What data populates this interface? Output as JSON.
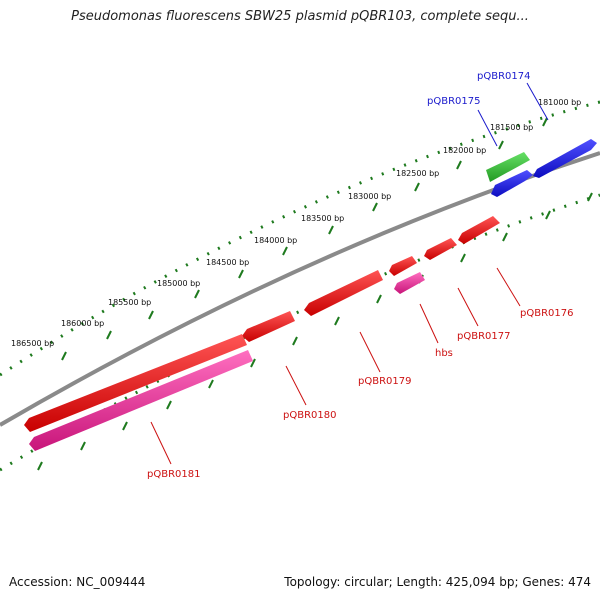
{
  "title": "Pseudomonas fluorescens SBW25 plasmid pQBR103, complete sequ...",
  "footer": {
    "accession": "Accession: NC_009444",
    "summary": "Topology: circular; Length: 425,094 bp; Genes: 474"
  },
  "colors": {
    "backbone": "#7f7f7f",
    "ruler": "#1e7a1e",
    "forward_label": "#1a1acc",
    "reverse_label": "#cc1111",
    "gene_red": "#e60000",
    "gene_pink": "#e8198c",
    "gene_blue": "#1414e6",
    "gene_green": "#33bb33"
  },
  "ruler_labels": [
    "181000 bp",
    "181500 bp",
    "182000 bp",
    "182500 bp",
    "183000 bp",
    "183500 bp",
    "184000 bp",
    "184500 bp",
    "185000 bp",
    "185500 bp",
    "186000 bp",
    "186500 bp"
  ],
  "genes": [
    {
      "name": "pQBR0174",
      "strand": "forward",
      "color": "gene_blue"
    },
    {
      "name": "pQBR0175",
      "strand": "forward",
      "color": "gene_green"
    },
    {
      "name": "pQBR0176",
      "strand": "reverse",
      "color": "gene_red"
    },
    {
      "name": "pQBR0177",
      "strand": "reverse",
      "color": "gene_red"
    },
    {
      "name": "hbs",
      "strand": "reverse",
      "color": "gene_pink"
    },
    {
      "name": "pQBR0179",
      "strand": "reverse",
      "color": "gene_red"
    },
    {
      "name": "pQBR0180",
      "strand": "reverse",
      "color": "gene_red"
    },
    {
      "name": "pQBR0181",
      "strand": "reverse",
      "color": "gene_pink"
    }
  ]
}
